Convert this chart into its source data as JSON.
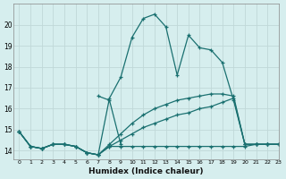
{
  "xlabel": "Humidex (Indice chaleur)",
  "bg_color": "#d6eeee",
  "grid_color": "#c0d8d8",
  "line_color": "#1a7070",
  "xlim": [
    -0.5,
    23
  ],
  "ylim": [
    13.6,
    21.0
  ],
  "yticks": [
    14,
    15,
    16,
    17,
    18,
    19,
    20
  ],
  "xticks": [
    0,
    1,
    2,
    3,
    4,
    5,
    6,
    7,
    8,
    9,
    10,
    11,
    12,
    13,
    14,
    15,
    16,
    17,
    18,
    19,
    20,
    21,
    22,
    23
  ],
  "series": [
    {
      "x": [
        0,
        1,
        2,
        3,
        4,
        5,
        6,
        7,
        8,
        9,
        10,
        11,
        12,
        13,
        14,
        15,
        16,
        17,
        18,
        19,
        20,
        21,
        22,
        23
      ],
      "y": [
        14.9,
        14.2,
        14.1,
        14.3,
        14.3,
        14.2,
        13.9,
        13.8,
        14.2,
        14.2,
        14.2,
        14.2,
        14.2,
        14.2,
        14.2,
        14.2,
        14.2,
        14.2,
        14.2,
        14.2,
        14.2,
        14.3,
        14.3,
        14.3
      ]
    },
    {
      "x": [
        0,
        1,
        2,
        3,
        4,
        5,
        6,
        7,
        8,
        9,
        10,
        11,
        12,
        13,
        14,
        15,
        16,
        17,
        18,
        19,
        20,
        21,
        22,
        23
      ],
      "y": [
        14.9,
        14.2,
        14.1,
        14.3,
        14.3,
        14.2,
        13.9,
        13.8,
        14.2,
        14.5,
        14.8,
        15.1,
        15.3,
        15.5,
        15.7,
        15.8,
        16.0,
        16.1,
        16.3,
        16.5,
        14.3,
        14.3,
        14.3,
        14.3
      ]
    },
    {
      "x": [
        0,
        1,
        2,
        3,
        4,
        5,
        6,
        7,
        8,
        9,
        10,
        11,
        12,
        13,
        14,
        15,
        16,
        17,
        18,
        19,
        20,
        21,
        22,
        23
      ],
      "y": [
        14.9,
        14.2,
        14.1,
        14.3,
        14.3,
        14.2,
        13.9,
        13.8,
        14.3,
        14.8,
        15.3,
        15.7,
        16.0,
        16.2,
        16.4,
        16.5,
        16.6,
        16.7,
        16.7,
        16.6,
        14.3,
        14.3,
        14.3,
        14.3
      ]
    },
    {
      "x": [
        7,
        8,
        9
      ],
      "y": [
        16.6,
        16.4,
        14.3
      ]
    },
    {
      "x": [
        0,
        1,
        2,
        3,
        4,
        5,
        6,
        7,
        8,
        9,
        10,
        11,
        12,
        13,
        14,
        15,
        16,
        17,
        18,
        19,
        20,
        21,
        22,
        23
      ],
      "y": [
        14.9,
        14.2,
        14.1,
        14.3,
        14.3,
        14.2,
        13.9,
        13.8,
        16.5,
        17.5,
        19.4,
        20.3,
        20.5,
        19.9,
        17.6,
        19.5,
        18.9,
        18.8,
        18.2,
        16.4,
        14.3,
        14.3,
        14.3,
        14.3
      ]
    }
  ]
}
